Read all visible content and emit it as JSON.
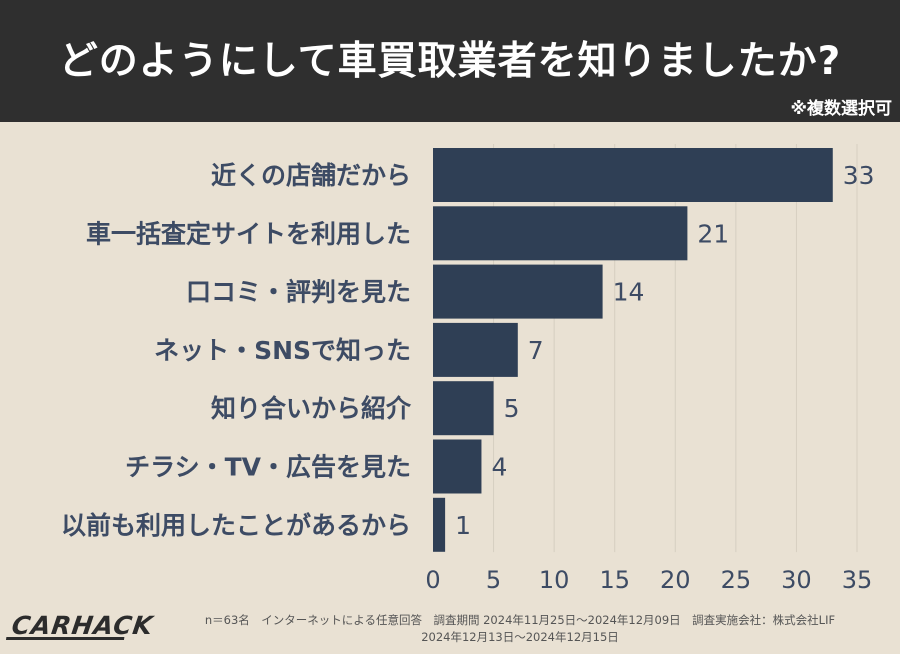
{
  "header": {
    "title": "どのようにして車買取業者を知りましたか?",
    "note": "※複数選択可"
  },
  "chart_data": {
    "type": "bar",
    "orientation": "horizontal",
    "categories": [
      "近くの店舗だから",
      "車一括査定サイトを利用した",
      "口コミ・評判を見た",
      "ネット・SNSで知った",
      "知り合いから紹介",
      "チラシ・TV・広告を見た",
      "以前も利用したことがあるから"
    ],
    "values": [
      33,
      21,
      14,
      7,
      5,
      4,
      1
    ],
    "xlim": [
      0,
      35
    ],
    "xticks": [
      0,
      5,
      10,
      15,
      20,
      25,
      30,
      35
    ],
    "grid": true,
    "bar_color": "#2f3f55",
    "title": "",
    "xlabel": "",
    "ylabel": ""
  },
  "footer": {
    "logo": "CARHACK",
    "line1": "n＝63名　インターネットによる任意回答　調査期間 2024年11月25日～2024年12月09日　調査実施会社：株式会社LIF",
    "line2": "2024年12月13日～2024年12月15日"
  },
  "colors": {
    "background": "#e9e1d3",
    "header": "#2f2f2f",
    "label": "#3d4b64",
    "grid": "#d6cfc1"
  }
}
